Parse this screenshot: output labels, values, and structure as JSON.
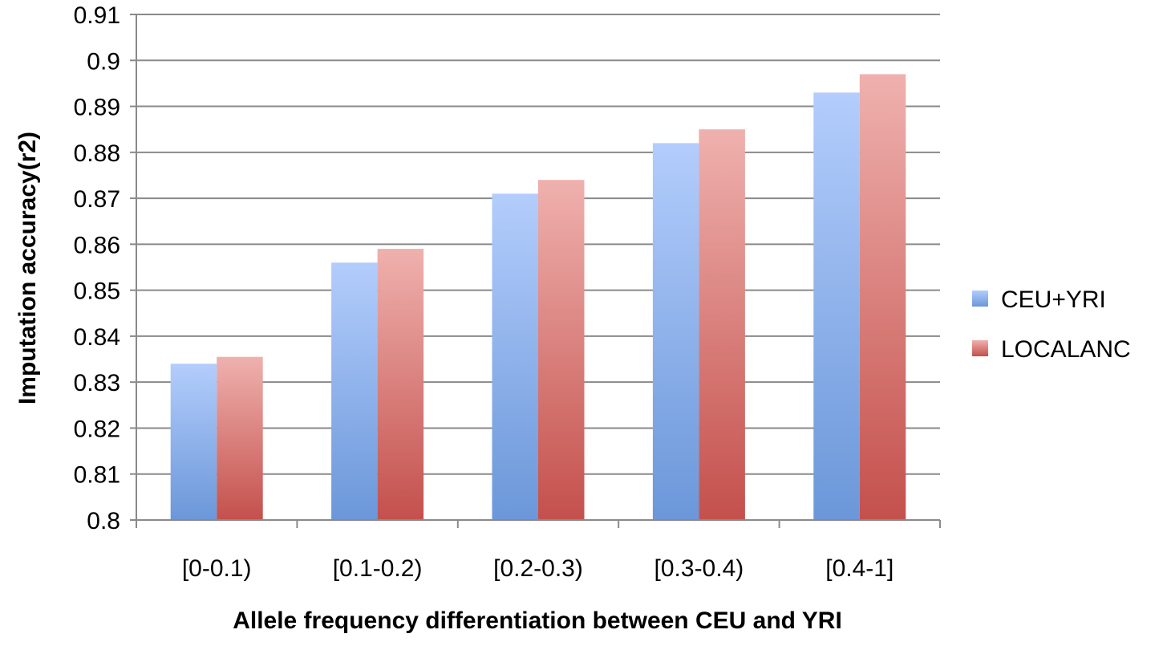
{
  "chart_data": {
    "type": "bar",
    "title": "",
    "xlabel": "Allele frequency differentiation between CEU and YRI",
    "ylabel": "Imputation accuracy(r2)",
    "categories": [
      "[0-0.1)",
      "[0.1-0.2)",
      "[0.2-0.3)",
      "[0.3-0.4)",
      "[0.4-1]"
    ],
    "series": [
      {
        "name": "CEU+YRI",
        "values": [
          0.834,
          0.856,
          0.871,
          0.882,
          0.893
        ],
        "color_top": "#b3cdfc",
        "color_bottom": "#6b97d9"
      },
      {
        "name": "LOCALANC",
        "values": [
          0.8355,
          0.859,
          0.874,
          0.885,
          0.897
        ],
        "color_top": "#efb1ae",
        "color_bottom": "#c4504c"
      }
    ],
    "ylim": [
      0.8,
      0.91
    ],
    "yticks": [
      0.8,
      0.81,
      0.82,
      0.83,
      0.84,
      0.85,
      0.86,
      0.87,
      0.88,
      0.89,
      0.9,
      0.91
    ],
    "ytick_labels": [
      "0.8",
      "0.81",
      "0.82",
      "0.83",
      "0.84",
      "0.85",
      "0.86",
      "0.87",
      "0.88",
      "0.89",
      "0.9",
      "0.91"
    ],
    "grid": true,
    "grid_color": "#8a8a8a",
    "legend_position": "right"
  }
}
